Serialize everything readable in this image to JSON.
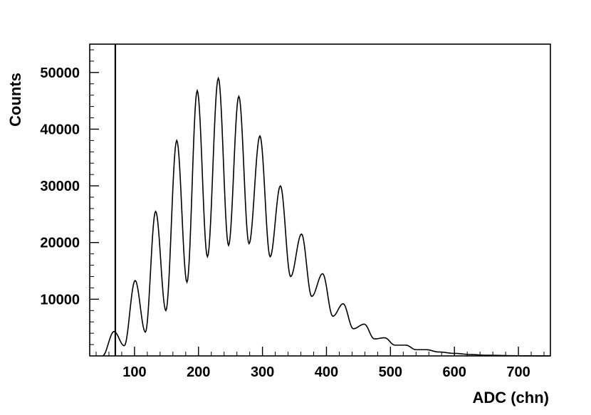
{
  "chart_data": {
    "type": "line",
    "title": "",
    "xlabel": "ADC (chn)",
    "ylabel": "Counts",
    "xlim": [
      30,
      750
    ],
    "ylim": [
      0,
      55000
    ],
    "x_ticks": [
      100,
      200,
      300,
      400,
      500,
      600,
      700
    ],
    "x_tick_labels": [
      "100",
      "200",
      "300",
      "400",
      "500",
      "600",
      "700"
    ],
    "y_ticks": [
      10000,
      20000,
      30000,
      40000,
      50000
    ],
    "y_tick_labels": [
      "10000",
      "20000",
      "30000",
      "40000",
      "50000"
    ],
    "grid": false,
    "threshold_line_x": 70,
    "peaks": [
      {
        "x": 68,
        "counts": 4300
      },
      {
        "x": 101,
        "counts": 13300
      },
      {
        "x": 133,
        "counts": 25500
      },
      {
        "x": 166,
        "counts": 38000
      },
      {
        "x": 198,
        "counts": 46800
      },
      {
        "x": 231,
        "counts": 49000
      },
      {
        "x": 263,
        "counts": 45800
      },
      {
        "x": 296,
        "counts": 38800
      },
      {
        "x": 328,
        "counts": 30000
      },
      {
        "x": 361,
        "counts": 21500
      },
      {
        "x": 394,
        "counts": 14500
      },
      {
        "x": 426,
        "counts": 9200
      },
      {
        "x": 459,
        "counts": 5600
      },
      {
        "x": 491,
        "counts": 3200
      },
      {
        "x": 524,
        "counts": 1900
      },
      {
        "x": 556,
        "counts": 1100
      }
    ],
    "valleys": [
      {
        "x": 84,
        "counts": 1800
      },
      {
        "x": 117,
        "counts": 4200
      },
      {
        "x": 149,
        "counts": 8000
      },
      {
        "x": 182,
        "counts": 13000
      },
      {
        "x": 214,
        "counts": 17500
      },
      {
        "x": 247,
        "counts": 19500
      },
      {
        "x": 279,
        "counts": 19800
      },
      {
        "x": 312,
        "counts": 17500
      },
      {
        "x": 344,
        "counts": 14000
      },
      {
        "x": 377,
        "counts": 10500
      },
      {
        "x": 410,
        "counts": 7000
      },
      {
        "x": 442,
        "counts": 4800
      },
      {
        "x": 475,
        "counts": 3000
      },
      {
        "x": 507,
        "counts": 1900
      },
      {
        "x": 540,
        "counts": 1100
      }
    ],
    "tail": [
      {
        "x": 575,
        "counts": 700
      },
      {
        "x": 600,
        "counts": 450
      },
      {
        "x": 625,
        "counts": 250
      },
      {
        "x": 650,
        "counts": 120
      },
      {
        "x": 700,
        "counts": 30
      },
      {
        "x": 750,
        "counts": 0
      }
    ]
  }
}
